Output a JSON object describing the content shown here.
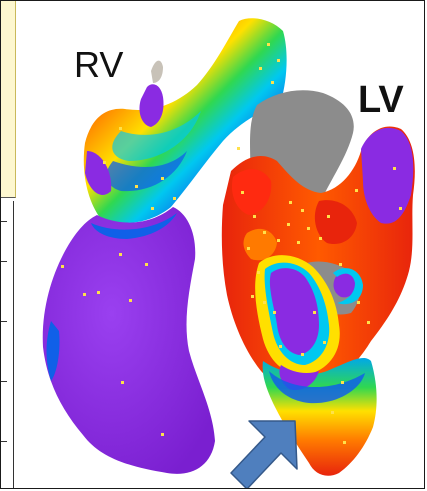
{
  "labels": {
    "rv": "RV",
    "lv": "LV"
  },
  "colors": {
    "scar_purple": "#8a2be2",
    "healthy_red": "#e8240c",
    "border_orange": "#ff7a00",
    "border_yellow": "#ffe000",
    "border_green": "#30d850",
    "border_cyan": "#00c8f0",
    "border_blue": "#1060e8",
    "valve_gray": "#8c8c8c",
    "point_marker": "#ffe14a",
    "arrow_fill": "#4f7fbe"
  },
  "icons": {
    "pointer": "arrow-pointer-icon"
  }
}
